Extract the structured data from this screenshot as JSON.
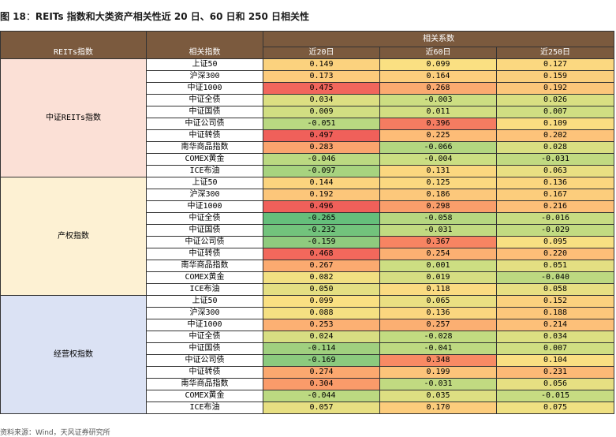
{
  "title": {
    "fig": "图 18",
    "sep": "：",
    "text": "REITs 指数和大类资产相关性近 20 日、60 日和 250 日相关性"
  },
  "headers": {
    "reits": "REITs指数",
    "related": "相关指数",
    "coef": "相关系数",
    "d20": "近20日",
    "d60": "近60日",
    "d250": "近250日"
  },
  "groups": [
    {
      "name": "中证REITs指数",
      "bg": "#fbe0d6",
      "rows": [
        {
          "index": "上证50",
          "v20": "0.149",
          "v60": "0.099",
          "v250": "0.127"
        },
        {
          "index": "沪深300",
          "v20": "0.173",
          "v60": "0.164",
          "v250": "0.159"
        },
        {
          "index": "中证1000",
          "v20": "0.475",
          "v60": "0.268",
          "v250": "0.192"
        },
        {
          "index": "中证全债",
          "v20": "0.034",
          "v60": "-0.003",
          "v250": "0.026"
        },
        {
          "index": "中证国债",
          "v20": "0.009",
          "v60": "0.011",
          "v250": "0.007"
        },
        {
          "index": "中证公司债",
          "v20": "-0.051",
          "v60": "0.396",
          "v250": "0.109"
        },
        {
          "index": "中证转债",
          "v20": "0.497",
          "v60": "0.225",
          "v250": "0.202"
        },
        {
          "index": "南华商品指数",
          "v20": "0.283",
          "v60": "-0.066",
          "v250": "0.028"
        },
        {
          "index": "COMEX黄金",
          "v20": "-0.046",
          "v60": "-0.004",
          "v250": "-0.031"
        },
        {
          "index": "ICE布油",
          "v20": "-0.097",
          "v60": "0.131",
          "v250": "0.063"
        }
      ]
    },
    {
      "name": "产权指数",
      "bg": "#fdf1d3",
      "rows": [
        {
          "index": "上证50",
          "v20": "0.144",
          "v60": "0.125",
          "v250": "0.136"
        },
        {
          "index": "沪深300",
          "v20": "0.192",
          "v60": "0.186",
          "v250": "0.167"
        },
        {
          "index": "中证1000",
          "v20": "0.496",
          "v60": "0.298",
          "v250": "0.216"
        },
        {
          "index": "中证全债",
          "v20": "-0.265",
          "v60": "-0.058",
          "v250": "-0.016"
        },
        {
          "index": "中证国债",
          "v20": "-0.232",
          "v60": "-0.031",
          "v250": "-0.029"
        },
        {
          "index": "中证公司债",
          "v20": "-0.159",
          "v60": "0.367",
          "v250": "0.095"
        },
        {
          "index": "中证转债",
          "v20": "0.468",
          "v60": "0.254",
          "v250": "0.220"
        },
        {
          "index": "南华商品指数",
          "v20": "0.267",
          "v60": "0.001",
          "v250": "0.051"
        },
        {
          "index": "COMEX黄金",
          "v20": "0.082",
          "v60": "0.019",
          "v250": "-0.040"
        },
        {
          "index": "ICE布油",
          "v20": "0.050",
          "v60": "0.118",
          "v250": "0.058"
        }
      ]
    },
    {
      "name": "经营权指数",
      "bg": "#dbe2f4",
      "rows": [
        {
          "index": "上证50",
          "v20": "0.099",
          "v60": "0.065",
          "v250": "0.152"
        },
        {
          "index": "沪深300",
          "v20": "0.088",
          "v60": "0.136",
          "v250": "0.188"
        },
        {
          "index": "中证1000",
          "v20": "0.253",
          "v60": "0.257",
          "v250": "0.214"
        },
        {
          "index": "中证全债",
          "v20": "0.024",
          "v60": "-0.028",
          "v250": "0.034"
        },
        {
          "index": "中证国债",
          "v20": "-0.114",
          "v60": "-0.041",
          "v250": "0.007"
        },
        {
          "index": "中证公司债",
          "v20": "-0.169",
          "v60": "0.348",
          "v250": "0.104"
        },
        {
          "index": "中证转债",
          "v20": "0.274",
          "v60": "0.199",
          "v250": "0.231"
        },
        {
          "index": "南华商品指数",
          "v20": "0.304",
          "v60": "-0.031",
          "v250": "0.056"
        },
        {
          "index": "COMEX黄金",
          "v20": "-0.044",
          "v60": "0.035",
          "v250": "-0.015"
        },
        {
          "index": "ICE布油",
          "v20": "0.057",
          "v60": "0.170",
          "v250": "0.075"
        }
      ]
    }
  ],
  "source": "资料来源：Wind，天风证券研究所"
}
